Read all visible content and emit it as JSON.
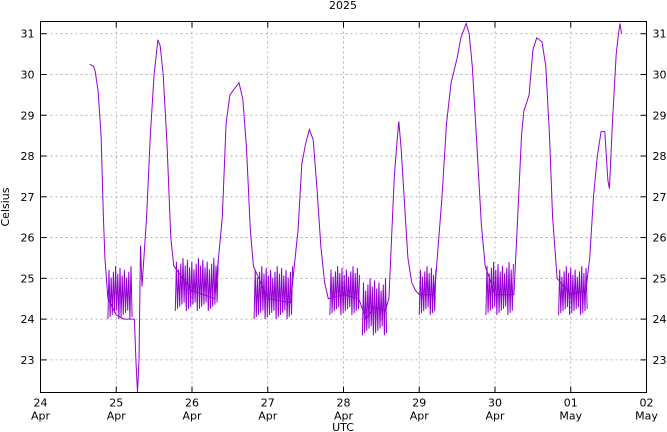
{
  "chart_data": {
    "type": "line",
    "title": "2025",
    "xlabel": "UTC",
    "ylabel": "Celsius",
    "ylim": [
      22.2,
      31.3
    ],
    "xlim": [
      0,
      8
    ],
    "y_ticks": [
      23,
      24,
      25,
      26,
      27,
      28,
      29,
      30,
      31
    ],
    "x_ticks": [
      {
        "x": 0,
        "day": "24",
        "month": "Apr"
      },
      {
        "x": 1,
        "day": "25",
        "month": "Apr"
      },
      {
        "x": 2,
        "day": "26",
        "month": "Apr"
      },
      {
        "x": 3,
        "day": "27",
        "month": "Apr"
      },
      {
        "x": 4,
        "day": "28",
        "month": "Apr"
      },
      {
        "x": 5,
        "day": "29",
        "month": "Apr"
      },
      {
        "x": 6,
        "day": "30",
        "month": "Apr"
      },
      {
        "x": 7,
        "day": "01",
        "month": "May"
      },
      {
        "x": 8,
        "day": "02",
        "month": "May"
      }
    ],
    "grid": true,
    "y_ticks_mirrored_right": true,
    "series": [
      {
        "color": "#9400d3",
        "points": [
          [
            0.65,
            30.25
          ],
          [
            0.7,
            30.2
          ],
          [
            0.72,
            30.1
          ],
          [
            0.76,
            29.6
          ],
          [
            0.8,
            28.5
          ],
          [
            0.83,
            26.5
          ],
          [
            0.85,
            25.5
          ],
          [
            0.87,
            25.0
          ],
          [
            0.89,
            24.5
          ],
          [
            1.0,
            24.1
          ],
          [
            1.1,
            24.0
          ],
          [
            1.18,
            24.0
          ],
          [
            1.24,
            24.0
          ],
          [
            1.26,
            23.0
          ],
          [
            1.28,
            22.2
          ],
          [
            1.3,
            23.0
          ],
          [
            1.32,
            25.8
          ],
          [
            1.34,
            24.8
          ],
          [
            1.4,
            26.5
          ],
          [
            1.45,
            28.5
          ],
          [
            1.5,
            30.0
          ],
          [
            1.55,
            30.85
          ],
          [
            1.58,
            30.7
          ],
          [
            1.62,
            30.0
          ],
          [
            1.67,
            28.3
          ],
          [
            1.72,
            26.0
          ],
          [
            1.76,
            25.3
          ],
          [
            2.0,
            24.7
          ],
          [
            2.3,
            24.5
          ],
          [
            2.4,
            26.5
          ],
          [
            2.45,
            28.8
          ],
          [
            2.5,
            29.5
          ],
          [
            2.58,
            29.7
          ],
          [
            2.62,
            29.8
          ],
          [
            2.67,
            29.4
          ],
          [
            2.72,
            28.2
          ],
          [
            2.77,
            26.2
          ],
          [
            2.81,
            25.3
          ],
          [
            3.0,
            24.5
          ],
          [
            3.3,
            24.4
          ],
          [
            3.4,
            26.2
          ],
          [
            3.45,
            27.8
          ],
          [
            3.5,
            28.3
          ],
          [
            3.55,
            28.65
          ],
          [
            3.6,
            28.4
          ],
          [
            3.65,
            27.2
          ],
          [
            3.7,
            25.8
          ],
          [
            3.75,
            24.9
          ],
          [
            3.8,
            24.5
          ],
          [
            4.0,
            24.6
          ],
          [
            4.2,
            24.5
          ],
          [
            4.3,
            24.0
          ],
          [
            4.4,
            24.3
          ],
          [
            4.55,
            24.2
          ],
          [
            4.6,
            24.5
          ],
          [
            4.67,
            27.5
          ],
          [
            4.7,
            28.2
          ],
          [
            4.73,
            28.85
          ],
          [
            4.76,
            28.2
          ],
          [
            4.8,
            27.0
          ],
          [
            4.85,
            25.5
          ],
          [
            4.9,
            24.9
          ],
          [
            4.95,
            24.7
          ],
          [
            5.0,
            24.6
          ],
          [
            5.2,
            24.6
          ],
          [
            5.3,
            27.0
          ],
          [
            5.36,
            28.8
          ],
          [
            5.42,
            29.8
          ],
          [
            5.5,
            30.4
          ],
          [
            5.55,
            30.9
          ],
          [
            5.62,
            31.25
          ],
          [
            5.66,
            31.0
          ],
          [
            5.7,
            30.2
          ],
          [
            5.76,
            28.3
          ],
          [
            5.82,
            26.3
          ],
          [
            5.87,
            25.3
          ],
          [
            6.0,
            24.6
          ],
          [
            6.25,
            24.6
          ],
          [
            6.3,
            26.5
          ],
          [
            6.35,
            28.5
          ],
          [
            6.38,
            29.1
          ],
          [
            6.45,
            29.5
          ],
          [
            6.5,
            30.6
          ],
          [
            6.55,
            30.9
          ],
          [
            6.62,
            30.8
          ],
          [
            6.67,
            30.2
          ],
          [
            6.72,
            28.5
          ],
          [
            6.76,
            26.5
          ],
          [
            6.82,
            25.0
          ],
          [
            7.0,
            24.6
          ],
          [
            7.2,
            24.7
          ],
          [
            7.25,
            25.5
          ],
          [
            7.3,
            27.0
          ],
          [
            7.35,
            28.0
          ],
          [
            7.4,
            28.6
          ],
          [
            7.45,
            28.6
          ],
          [
            7.49,
            27.4
          ],
          [
            7.51,
            27.2
          ],
          [
            7.55,
            28.8
          ],
          [
            7.6,
            30.5
          ],
          [
            7.63,
            31.0
          ],
          [
            7.65,
            31.25
          ],
          [
            7.67,
            31.0
          ]
        ],
        "noisy_bands": [
          {
            "from": 0.89,
            "to": 1.22,
            "low": 24.0,
            "high": 25.3
          },
          {
            "from": 1.78,
            "to": 2.35,
            "low": 24.2,
            "high": 25.5
          },
          {
            "from": 2.82,
            "to": 3.33,
            "low": 24.0,
            "high": 25.3
          },
          {
            "from": 3.82,
            "to": 4.22,
            "low": 24.1,
            "high": 25.3
          },
          {
            "from": 4.25,
            "to": 4.58,
            "low": 23.6,
            "high": 25.0
          },
          {
            "from": 5.0,
            "to": 5.22,
            "low": 24.1,
            "high": 25.3
          },
          {
            "from": 5.88,
            "to": 6.25,
            "low": 24.1,
            "high": 25.4
          },
          {
            "from": 6.84,
            "to": 7.22,
            "low": 24.1,
            "high": 25.3
          }
        ]
      }
    ]
  }
}
